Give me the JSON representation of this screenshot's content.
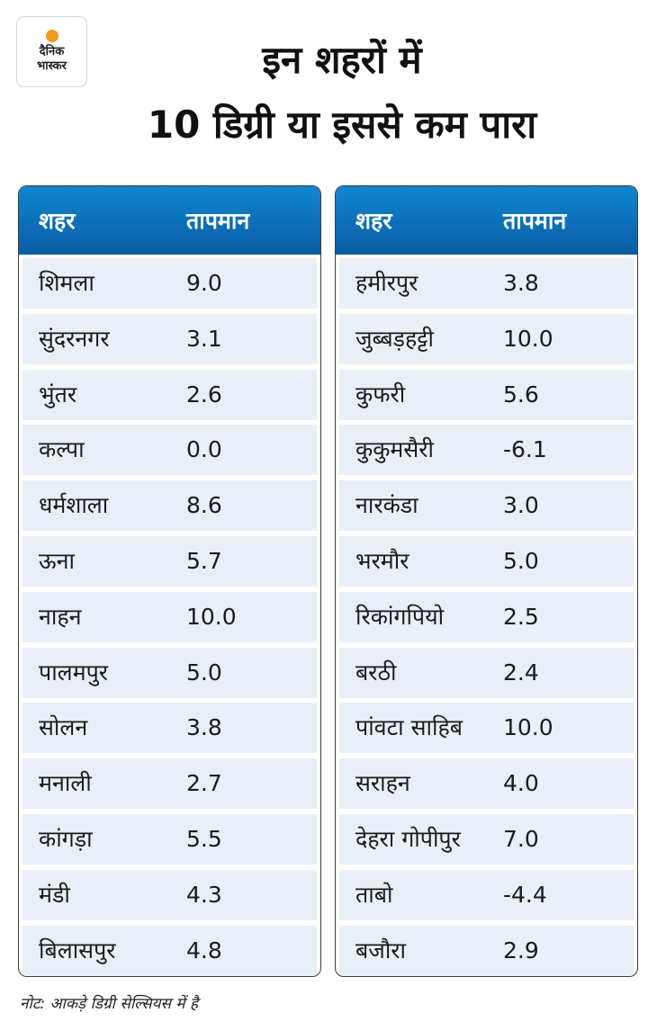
{
  "logo": {
    "line1": "दैनिक",
    "line2": "भास्कर"
  },
  "title": {
    "line1": "इन शहरों में",
    "line2": "10 डिग्री या इससे कम पारा"
  },
  "columns": {
    "city": "शहर",
    "temp": "तापमान"
  },
  "left_rows": [
    {
      "city": "शिमला",
      "temp": "9.0"
    },
    {
      "city": "सुंदरनगर",
      "temp": "3.1"
    },
    {
      "city": "भुंतर",
      "temp": "2.6"
    },
    {
      "city": "कल्पा",
      "temp": "0.0"
    },
    {
      "city": "धर्मशाला",
      "temp": "8.6"
    },
    {
      "city": "ऊना",
      "temp": "5.7"
    },
    {
      "city": "नाहन",
      "temp": "10.0"
    },
    {
      "city": "पालमपुर",
      "temp": "5.0"
    },
    {
      "city": "सोलन",
      "temp": "3.8"
    },
    {
      "city": "मनाली",
      "temp": "2.7"
    },
    {
      "city": "कांगड़ा",
      "temp": "5.5"
    },
    {
      "city": "मंडी",
      "temp": "4.3"
    },
    {
      "city": "बिलासपुर",
      "temp": "4.8"
    }
  ],
  "right_rows": [
    {
      "city": "हमीरपुर",
      "temp": "3.8"
    },
    {
      "city": "जुब्बड़हट्टी",
      "temp": "10.0"
    },
    {
      "city": "कुफरी",
      "temp": "5.6"
    },
    {
      "city": "कुकुमसैरी",
      "temp": "-6.1"
    },
    {
      "city": "नारकंडा",
      "temp": "3.0"
    },
    {
      "city": "भरमौर",
      "temp": "5.0"
    },
    {
      "city": "रिकांगपियो",
      "temp": "2.5"
    },
    {
      "city": "बरठी",
      "temp": "2.4"
    },
    {
      "city": "पांवटा साहिब",
      "temp": "10.0"
    },
    {
      "city": "सराहन",
      "temp": "4.0"
    },
    {
      "city": "देहरा गोपीपुर",
      "temp": "7.0"
    },
    {
      "city": "ताबो",
      "temp": "-4.4"
    },
    {
      "city": "बजौरा",
      "temp": "2.9"
    }
  ],
  "note": "नोट: आकड़े डिग्री सेल्सियस में है",
  "colors": {
    "header_blue": "#0a6fb8",
    "row_bg": "#e8eff6",
    "logo_sun": "#f29a1f"
  }
}
